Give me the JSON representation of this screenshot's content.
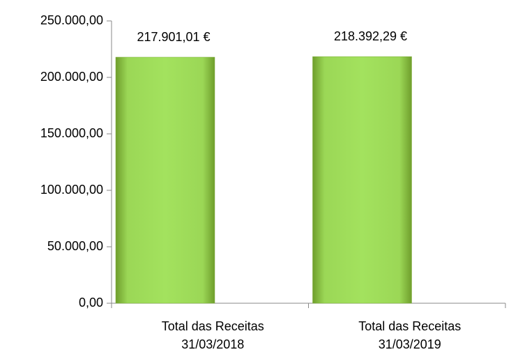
{
  "chart_data": {
    "type": "bar",
    "categories": [
      "Total das Receitas\n31/03/2018",
      "Total das Receitas\n31/03/2019"
    ],
    "values": [
      217901.01,
      218392.29
    ],
    "value_labels": [
      "217.901,01 €",
      "218.392,29 €"
    ],
    "color": "#92d050",
    "ylim": [
      0,
      250000
    ],
    "yticks": [
      {
        "value": 0,
        "label": "0,00"
      },
      {
        "value": 50000,
        "label": "50.000,00"
      },
      {
        "value": 100000,
        "label": "100.000,00"
      },
      {
        "value": 150000,
        "label": "150.000,00"
      },
      {
        "value": 200000,
        "label": "200.000,00"
      },
      {
        "value": 250000,
        "label": "250.000,00"
      }
    ]
  }
}
